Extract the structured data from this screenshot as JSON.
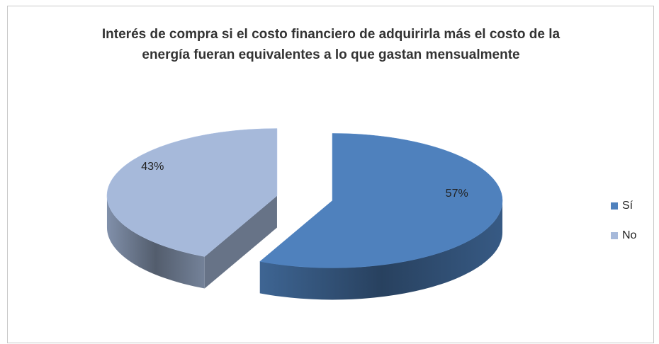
{
  "chart_data": {
    "type": "pie3d",
    "title": "Interés de compra si el costo financiero de adquirirla más el costo de la energía fueran equivalentes a lo que gastan mensualmente",
    "categories": [
      "Sí",
      "No"
    ],
    "values": [
      57,
      43
    ],
    "value_labels": [
      "57%",
      "43%"
    ],
    "colors": [
      "#4f81bd",
      "#a6b9da"
    ],
    "legend": "right"
  }
}
